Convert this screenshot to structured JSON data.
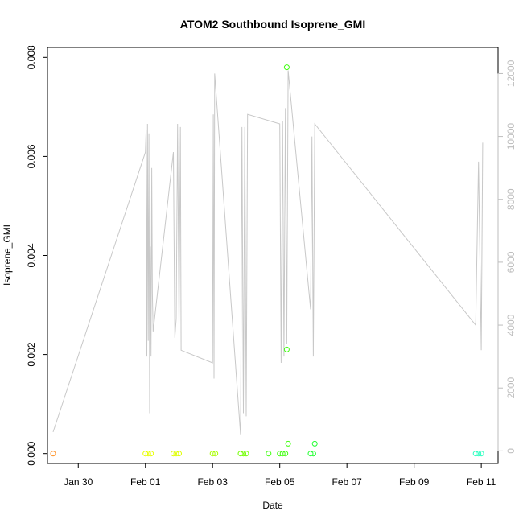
{
  "chart_data": {
    "type": "scatter",
    "title": "ATOM2 Southbound Isoprene_GMI",
    "xlabel": "Date",
    "ylabel": "Isoprene_GMI",
    "x_tick_labels": [
      "Jan 30",
      "Feb 01",
      "Feb 03",
      "Feb 05",
      "Feb 07",
      "Feb 09",
      "Feb 11"
    ],
    "x_tick_dates": [
      "2017-01-30",
      "2017-02-01",
      "2017-02-03",
      "2017-02-05",
      "2017-02-07",
      "2017-02-09",
      "2017-02-11"
    ],
    "xlim": [
      "2017-01-29T02:00",
      "2017-02-11T12:00"
    ],
    "ylim": [
      -0.0002,
      0.0082
    ],
    "y_ticks": [
      0.0,
      0.002,
      0.004,
      0.006,
      0.008
    ],
    "y_tick_labels": [
      "0.000",
      "0.002",
      "0.004",
      "0.006",
      "0.008"
    ],
    "y2_ticks": [
      0,
      2000,
      4000,
      6000,
      8000,
      10000,
      12000
    ],
    "y2_tick_labels": [
      "0",
      "2000",
      "4000",
      "6000",
      "8000",
      "10000",
      "12000"
    ],
    "y2lim": [
      -400,
      12830
    ],
    "grid": false,
    "line_color": "#c8c8c8",
    "points": [
      {
        "x": "2017-01-29T06:00",
        "y": 0.0,
        "color": "#ff8c1a"
      },
      {
        "x": "2017-02-01T00:00",
        "y": 0.0,
        "color": "#e8ff00"
      },
      {
        "x": "2017-02-01T02:00",
        "y": 0.0,
        "color": "#e8ff00"
      },
      {
        "x": "2017-02-01T04:00",
        "y": 0.0,
        "color": "#e8ff00"
      },
      {
        "x": "2017-02-01T20:00",
        "y": 0.0,
        "color": "#e0ff00"
      },
      {
        "x": "2017-02-01T22:00",
        "y": 0.0,
        "color": "#e0ff00"
      },
      {
        "x": "2017-02-02T00:00",
        "y": 0.0,
        "color": "#e0ff00"
      },
      {
        "x": "2017-02-03T00:00",
        "y": 0.0,
        "color": "#a8ff00"
      },
      {
        "x": "2017-02-03T02:00",
        "y": 0.0,
        "color": "#a8ff00"
      },
      {
        "x": "2017-02-03T20:00",
        "y": 0.0,
        "color": "#70ff00"
      },
      {
        "x": "2017-02-03T22:00",
        "y": 0.0,
        "color": "#70ff00"
      },
      {
        "x": "2017-02-04T00:00",
        "y": 0.0,
        "color": "#70ff00"
      },
      {
        "x": "2017-02-04T16:00",
        "y": 0.0,
        "color": "#40ff10"
      },
      {
        "x": "2017-02-05T00:00",
        "y": 0.0,
        "color": "#40ff10"
      },
      {
        "x": "2017-02-05T02:00",
        "y": 0.0,
        "color": "#40ff10"
      },
      {
        "x": "2017-02-05T04:00",
        "y": 0.0,
        "color": "#40ff10"
      },
      {
        "x": "2017-02-05T05:00",
        "y": 0.0078,
        "color": "#40ff10"
      },
      {
        "x": "2017-02-05T05:00",
        "y": 0.0021,
        "color": "#40ff10"
      },
      {
        "x": "2017-02-05T06:00",
        "y": 0.0002,
        "color": "#40ff10"
      },
      {
        "x": "2017-02-05T22:00",
        "y": 0.0,
        "color": "#20ff30"
      },
      {
        "x": "2017-02-06T00:00",
        "y": 0.0,
        "color": "#20ff30"
      },
      {
        "x": "2017-02-06T01:00",
        "y": 0.0002,
        "color": "#20ff30"
      },
      {
        "x": "2017-02-10T20:00",
        "y": 0.0,
        "color": "#2cffc0"
      },
      {
        "x": "2017-02-10T22:00",
        "y": 0.0,
        "color": "#2cffc0"
      },
      {
        "x": "2017-02-11T00:00",
        "y": 0.0,
        "color": "#2cffc0"
      }
    ],
    "secondary_series": {
      "axis": "right",
      "x": [
        "2017-01-29T06:00",
        "2017-02-01T00:00",
        "2017-02-01T00:30",
        "2017-02-01T01:00",
        "2017-02-01T01:30",
        "2017-02-01T02:00",
        "2017-02-01T02:30",
        "2017-02-01T03:00",
        "2017-02-01T03:30",
        "2017-02-01T04:00",
        "2017-02-01T04:30",
        "2017-02-01T05:00",
        "2017-02-01T05:30",
        "2017-02-01T20:00",
        "2017-02-01T21:00",
        "2017-02-01T22:00",
        "2017-02-01T23:00",
        "2017-02-02T00:00",
        "2017-02-02T01:00",
        "2017-02-02T01:30",
        "2017-02-03T00:00",
        "2017-02-03T00:30",
        "2017-02-03T01:00",
        "2017-02-03T01:30",
        "2017-02-03T20:00",
        "2017-02-03T21:00",
        "2017-02-03T22:00",
        "2017-02-03T23:00",
        "2017-02-04T00:00",
        "2017-02-04T01:00",
        "2017-02-05T00:00",
        "2017-02-05T01:00",
        "2017-02-05T02:00",
        "2017-02-05T03:00",
        "2017-02-05T04:00",
        "2017-02-05T05:00",
        "2017-02-05T06:00",
        "2017-02-05T22:00",
        "2017-02-05T23:00",
        "2017-02-06T00:00",
        "2017-02-06T01:00",
        "2017-02-10T20:00",
        "2017-02-10T22:00",
        "2017-02-11T00:00",
        "2017-02-11T01:00"
      ],
      "y": [
        600,
        9500,
        10200,
        3000,
        10400,
        3500,
        10100,
        1200,
        6500,
        3000,
        9000,
        5000,
        3800,
        9500,
        3600,
        4200,
        10400,
        4000,
        10300,
        3200,
        2800,
        10700,
        2300,
        12000,
        500,
        10300,
        1200,
        10300,
        1100,
        10700,
        10400,
        2800,
        10500,
        3000,
        10900,
        3400,
        12100,
        4500,
        10000,
        3000,
        10400,
        4000,
        9200,
        3200,
        9800
      ]
    }
  }
}
